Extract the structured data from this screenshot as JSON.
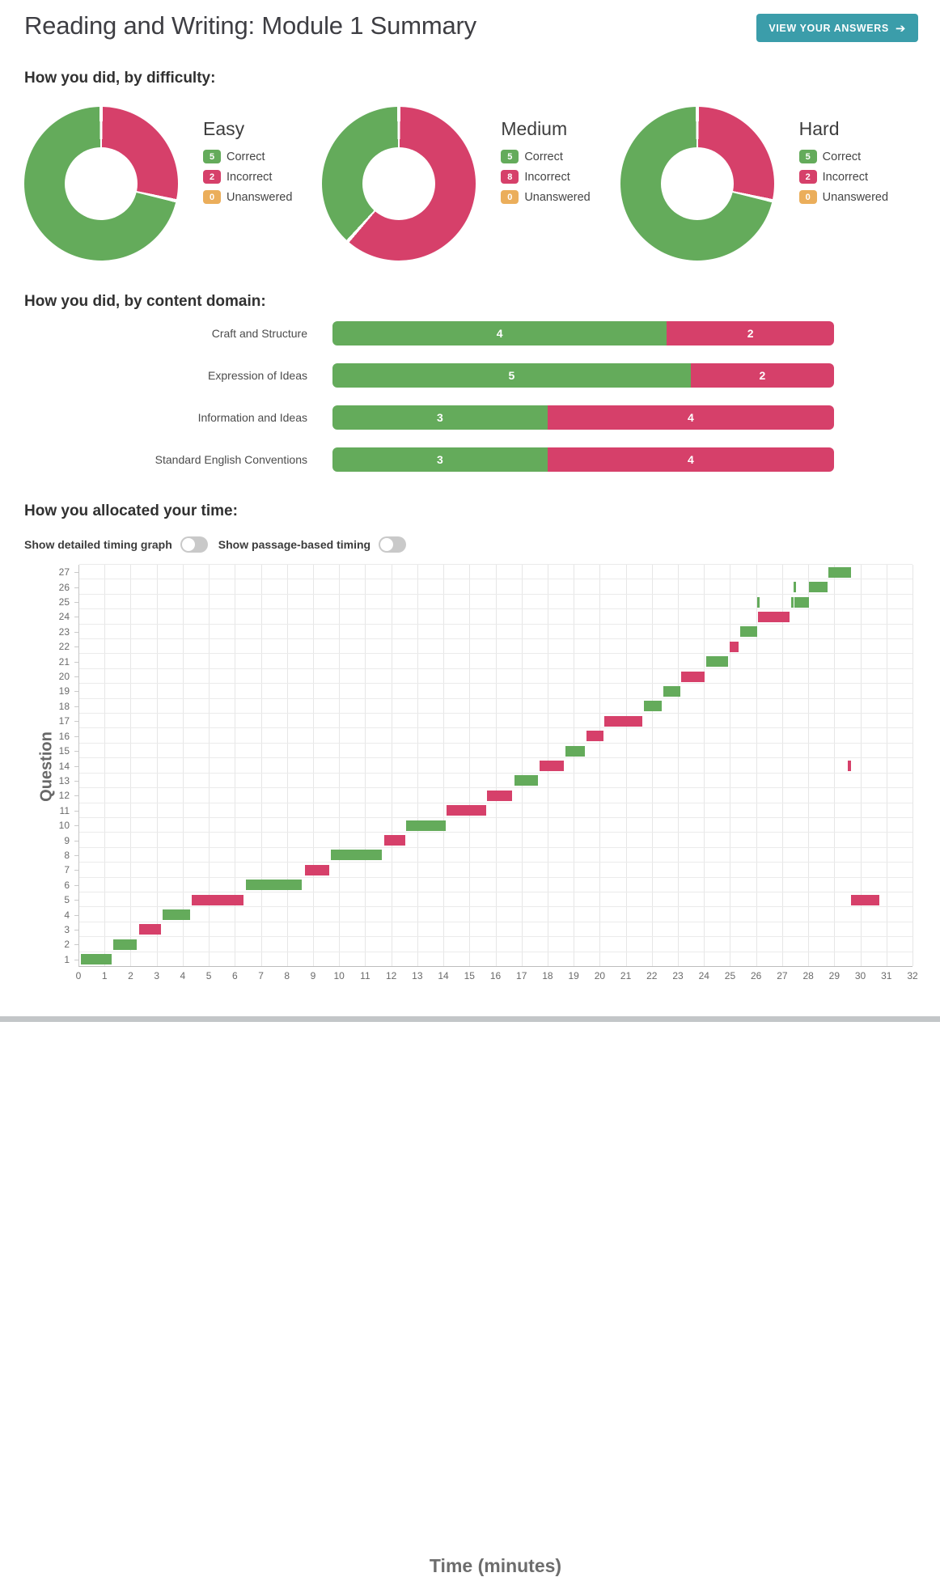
{
  "header": {
    "title": "Reading and Writing: Module 1 Summary",
    "view_answers_label": "VIEW YOUR ANSWERS",
    "arrow_icon": "➔"
  },
  "sections": {
    "difficulty": {
      "heading": "How you did, by difficulty:"
    },
    "domain": {
      "heading": "How you did, by content domain:"
    },
    "timing": {
      "heading": "How you allocated your time:",
      "toggles": [
        {
          "label": "Show detailed timing graph",
          "state": "off"
        },
        {
          "label": "Show passage-based timing",
          "state": "off"
        }
      ]
    }
  },
  "colors": {
    "correct": "#64ab5b",
    "incorrect": "#d6406a",
    "unanswered": "#ebae5b",
    "accent_teal": "#3b9daa"
  },
  "legend_labels": [
    "Correct",
    "Incorrect",
    "Unanswered"
  ],
  "chart_data": [
    {
      "type": "pie",
      "subtype": "donut",
      "title": "Easy",
      "labels": [
        "Correct",
        "Incorrect",
        "Unanswered"
      ],
      "values": [
        5,
        2,
        0
      ],
      "colors": [
        "#64ab5b",
        "#d6406a",
        "#ebae5b"
      ],
      "legend_position": "right"
    },
    {
      "type": "pie",
      "subtype": "donut",
      "title": "Medium",
      "labels": [
        "Correct",
        "Incorrect",
        "Unanswered"
      ],
      "values": [
        5,
        8,
        0
      ],
      "colors": [
        "#64ab5b",
        "#d6406a",
        "#ebae5b"
      ],
      "legend_position": "right"
    },
    {
      "type": "pie",
      "subtype": "donut",
      "title": "Hard",
      "labels": [
        "Correct",
        "Incorrect",
        "Unanswered"
      ],
      "values": [
        5,
        2,
        0
      ],
      "colors": [
        "#64ab5b",
        "#d6406a",
        "#ebae5b"
      ],
      "legend_position": "right"
    },
    {
      "type": "bar",
      "subtype": "stacked-horizontal",
      "title": "How you did, by content domain:",
      "categories": [
        "Craft and Structure",
        "Expression of Ideas",
        "Information and Ideas",
        "Standard English Conventions"
      ],
      "series": [
        {
          "name": "Correct",
          "color": "#64ab5b",
          "values": [
            4,
            5,
            3,
            3
          ]
        },
        {
          "name": "Incorrect",
          "color": "#d6406a",
          "values": [
            2,
            2,
            4,
            4
          ]
        }
      ],
      "data_labels": true
    },
    {
      "type": "gantt",
      "title": "How you allocated your time:",
      "xlabel": "Time (minutes)",
      "ylabel": "Question",
      "xlim": [
        0,
        32
      ],
      "x_ticks": [
        0,
        1,
        2,
        3,
        4,
        5,
        6,
        7,
        8,
        9,
        10,
        11,
        12,
        13,
        14,
        15,
        16,
        17,
        18,
        19,
        20,
        21,
        22,
        23,
        24,
        25,
        26,
        27,
        28,
        29,
        30,
        31,
        32
      ],
      "ylim": [
        1,
        27
      ],
      "grid": true,
      "bars": [
        {
          "question": 1,
          "result": "correct",
          "segments": [
            [
              0.05,
              1.25
            ]
          ]
        },
        {
          "question": 2,
          "result": "correct",
          "segments": [
            [
              1.3,
              2.2
            ]
          ]
        },
        {
          "question": 3,
          "result": "incorrect",
          "segments": [
            [
              2.3,
              3.15
            ]
          ]
        },
        {
          "question": 4,
          "result": "correct",
          "segments": [
            [
              3.2,
              4.25
            ]
          ]
        },
        {
          "question": 5,
          "result": "incorrect",
          "segments": [
            [
              4.3,
              6.3
            ],
            [
              29.6,
              30.7
            ]
          ]
        },
        {
          "question": 6,
          "result": "correct",
          "segments": [
            [
              6.4,
              8.55
            ]
          ]
        },
        {
          "question": 7,
          "result": "incorrect",
          "segments": [
            [
              8.65,
              9.6
            ]
          ]
        },
        {
          "question": 8,
          "result": "correct",
          "segments": [
            [
              9.65,
              11.6
            ]
          ]
        },
        {
          "question": 9,
          "result": "incorrect",
          "segments": [
            [
              11.7,
              12.5
            ]
          ]
        },
        {
          "question": 10,
          "result": "correct",
          "segments": [
            [
              12.55,
              14.05
            ]
          ]
        },
        {
          "question": 11,
          "result": "incorrect",
          "segments": [
            [
              14.1,
              15.6
            ]
          ]
        },
        {
          "question": 12,
          "result": "incorrect",
          "segments": [
            [
              15.65,
              16.6
            ]
          ]
        },
        {
          "question": 13,
          "result": "correct",
          "segments": [
            [
              16.7,
              17.6
            ]
          ]
        },
        {
          "question": 14,
          "result": "incorrect",
          "segments": [
            [
              17.65,
              18.6
            ],
            [
              29.5,
              29.6
            ]
          ]
        },
        {
          "question": 15,
          "result": "correct",
          "segments": [
            [
              18.65,
              19.4
            ]
          ]
        },
        {
          "question": 16,
          "result": "incorrect",
          "segments": [
            [
              19.45,
              20.1
            ]
          ]
        },
        {
          "question": 17,
          "result": "incorrect",
          "segments": [
            [
              20.15,
              21.6
            ]
          ]
        },
        {
          "question": 18,
          "result": "correct",
          "segments": [
            [
              21.65,
              22.35
            ]
          ]
        },
        {
          "question": 19,
          "result": "correct",
          "segments": [
            [
              22.4,
              23.05
            ]
          ]
        },
        {
          "question": 20,
          "result": "incorrect",
          "segments": [
            [
              23.1,
              24.0
            ]
          ]
        },
        {
          "question": 21,
          "result": "correct",
          "segments": [
            [
              24.05,
              24.9
            ]
          ]
        },
        {
          "question": 22,
          "result": "incorrect",
          "segments": [
            [
              24.95,
              25.3
            ]
          ]
        },
        {
          "question": 23,
          "result": "correct",
          "segments": [
            [
              25.35,
              26.0
            ]
          ]
        },
        {
          "question": 24,
          "result": "incorrect",
          "segments": [
            [
              26.05,
              27.25
            ]
          ]
        },
        {
          "question": 25,
          "result": "correct",
          "segments": [
            [
              26.0,
              26.1
            ],
            [
              27.3,
              27.4
            ],
            [
              27.45,
              28.0
            ]
          ]
        },
        {
          "question": 26,
          "result": "correct",
          "segments": [
            [
              27.4,
              27.5
            ],
            [
              28.0,
              28.7
            ]
          ]
        },
        {
          "question": 27,
          "result": "correct",
          "segments": [
            [
              28.75,
              29.6
            ]
          ]
        }
      ]
    }
  ]
}
